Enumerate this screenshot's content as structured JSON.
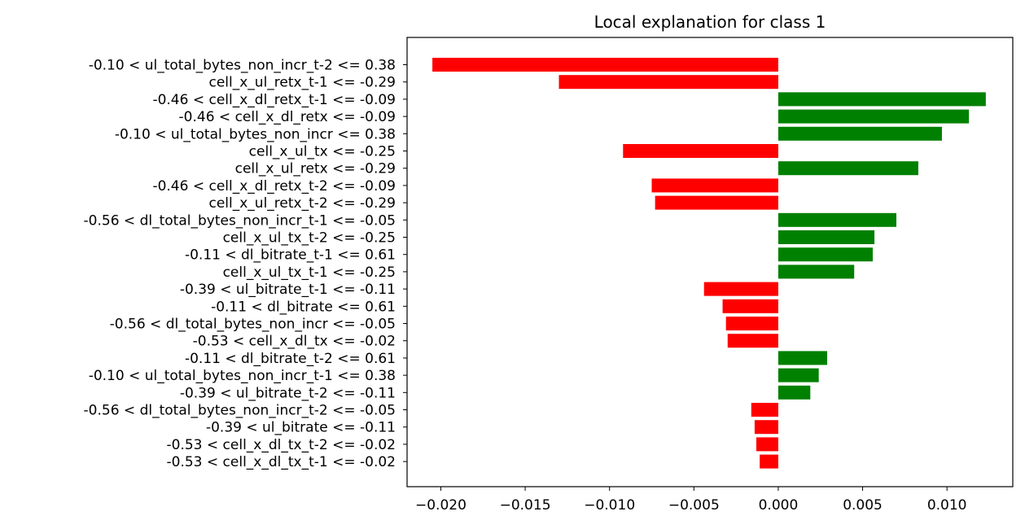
{
  "chart_data": {
    "type": "bar",
    "orientation": "horizontal",
    "title": "Local explanation for class 1",
    "xlabel": "",
    "ylabel": "",
    "xlim": [
      -0.022,
      0.0139
    ],
    "grid": false,
    "colors": {
      "positive": "#008000",
      "negative": "#ff0000"
    },
    "categories": [
      "-0.10 < ul_total_bytes_non_incr_t-2 <= 0.38",
      "cell_x_ul_retx_t-1 <= -0.29",
      "-0.46 < cell_x_dl_retx_t-1 <= -0.09",
      "-0.46 < cell_x_dl_retx <= -0.09",
      "-0.10 < ul_total_bytes_non_incr <= 0.38",
      "cell_x_ul_tx <= -0.25",
      "cell_x_ul_retx <= -0.29",
      "-0.46 < cell_x_dl_retx_t-2 <= -0.09",
      "cell_x_ul_retx_t-2 <= -0.29",
      "-0.56 < dl_total_bytes_non_incr_t-1 <= -0.05",
      "cell_x_ul_tx_t-2 <= -0.25",
      "-0.11 < dl_bitrate_t-1 <= 0.61",
      "cell_x_ul_tx_t-1 <= -0.25",
      "-0.39 < ul_bitrate_t-1 <= -0.11",
      "-0.11 < dl_bitrate <= 0.61",
      "-0.56 < dl_total_bytes_non_incr <= -0.05",
      "-0.53 < cell_x_dl_tx <= -0.02",
      "-0.11 < dl_bitrate_t-2 <= 0.61",
      "-0.10 < ul_total_bytes_non_incr_t-1 <= 0.38",
      "-0.39 < ul_bitrate_t-2 <= -0.11",
      "-0.56 < dl_total_bytes_non_incr_t-2 <= -0.05",
      "-0.39 < ul_bitrate <= -0.11",
      "-0.53 < cell_x_dl_tx_t-2 <= -0.02",
      "-0.53 < cell_x_dl_tx_t-1 <= -0.02"
    ],
    "values": [
      -0.0205,
      -0.013,
      0.0123,
      0.0113,
      0.0097,
      -0.0092,
      0.0083,
      -0.0075,
      -0.0073,
      0.007,
      0.0057,
      0.0056,
      0.0045,
      -0.0044,
      -0.0033,
      -0.0031,
      -0.003,
      0.0029,
      0.0024,
      0.0019,
      -0.0016,
      -0.0014,
      -0.0013,
      -0.0011
    ],
    "xticks": [
      -0.02,
      -0.015,
      -0.01,
      -0.005,
      0.0,
      0.005,
      0.01
    ],
    "xtick_labels": [
      "−0.020",
      "−0.015",
      "−0.010",
      "−0.005",
      "0.000",
      "0.005",
      "0.010"
    ]
  }
}
